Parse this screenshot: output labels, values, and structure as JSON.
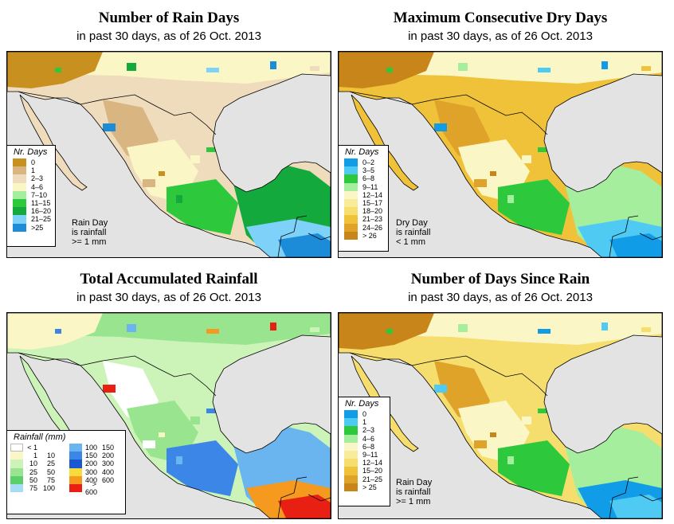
{
  "panels": [
    {
      "title": "Number of Rain Days",
      "subtitle": "in past 30 days, as of  26 Oct. 2013",
      "legend_title": "Nr. Days",
      "legend": [
        {
          "label": "0",
          "color": "#c8901e"
        },
        {
          "label": "1",
          "color": "#d9b581"
        },
        {
          "label": "2–3",
          "color": "#efdcbc"
        },
        {
          "label": "4–6",
          "color": "#fbf6c6"
        },
        {
          "label": "7–10",
          "color": "#a4ee9e"
        },
        {
          "label": "11–15",
          "color": "#2dc83c"
        },
        {
          "label": "16–20",
          "color": "#14a93c"
        },
        {
          "label": "21–25",
          "color": "#7ed1f8"
        },
        {
          "label": ">25",
          "color": "#1c8cd8"
        }
      ],
      "note": [
        "Rain Day",
        "is rainfall",
        ">= 1 mm"
      ]
    },
    {
      "title": "Maximum Consecutive Dry Days",
      "subtitle": "in past 30 days, as of  26 Oct. 2013",
      "legend_title": "Nr. Days",
      "legend": [
        {
          "label": "0–2",
          "color": "#109ce6"
        },
        {
          "label": "3–5",
          "color": "#4fcbf3"
        },
        {
          "label": "6–8",
          "color": "#2dc83c"
        },
        {
          "label": "9–11",
          "color": "#a4ee9e"
        },
        {
          "label": "12–14",
          "color": "#fbf6c6"
        },
        {
          "label": "15–17",
          "color": "#f8ec9a"
        },
        {
          "label": "18–20",
          "color": "#f5dd6e"
        },
        {
          "label": "21–23",
          "color": "#f0c23a"
        },
        {
          "label": "24–26",
          "color": "#e0a32a"
        },
        {
          "label": "> 26",
          "color": "#c8861a"
        }
      ],
      "note": [
        "Dry Day",
        "is rainfall",
        "< 1 mm"
      ]
    },
    {
      "title": "Total Accumulated Rainfall",
      "subtitle": "in past 30 days, as of  26 Oct. 2013",
      "legend_title": "Rainfall (mm)",
      "legend_left": [
        {
          "a": "< 1",
          "b": "",
          "color": "#ffffff"
        },
        {
          "a": "1",
          "b": "10",
          "color": "#fbf6c6"
        },
        {
          "a": "10",
          "b": "25",
          "color": "#cdf4b8"
        },
        {
          "a": "25",
          "b": "50",
          "color": "#98e48f"
        },
        {
          "a": "50",
          "b": "75",
          "color": "#5cd068"
        },
        {
          "a": "75",
          "b": "100",
          "color": "#a6dcf6"
        }
      ],
      "legend_right": [
        {
          "a": "100",
          "b": "150",
          "color": "#6ab4f0"
        },
        {
          "a": "150",
          "b": "200",
          "color": "#3c86e8"
        },
        {
          "a": "200",
          "b": "300",
          "color": "#1858d0"
        },
        {
          "a": "300",
          "b": "400",
          "color": "#f5dc3c"
        },
        {
          "a": "400",
          "b": "600",
          "color": "#f59a1e"
        },
        {
          "a": "> 600",
          "b": "",
          "color": "#e82014"
        }
      ]
    },
    {
      "title": "Number of Days Since Rain",
      "subtitle": "in past 30 days, as of  26 Oct. 2013",
      "legend_title": "Nr. Days",
      "legend": [
        {
          "label": "0",
          "color": "#109ce6"
        },
        {
          "label": "1",
          "color": "#4fcbf3"
        },
        {
          "label": "2–3",
          "color": "#2dc83c"
        },
        {
          "label": "4–6",
          "color": "#a4ee9e"
        },
        {
          "label": "6–8",
          "color": "#fbf6c6"
        },
        {
          "label": "9–11",
          "color": "#f8ec9a"
        },
        {
          "label": "12–14",
          "color": "#f5dd6e"
        },
        {
          "label": "15–20",
          "color": "#f0c23a"
        },
        {
          "label": "21–25",
          "color": "#e0a32a"
        },
        {
          "label": "> 25",
          "color": "#c8861a"
        }
      ],
      "note": [
        "Rain Day",
        "is rainfall",
        ">= 1 mm"
      ]
    }
  ],
  "colors": {
    "ocean": "#e3e3e3",
    "border": "#000000"
  }
}
